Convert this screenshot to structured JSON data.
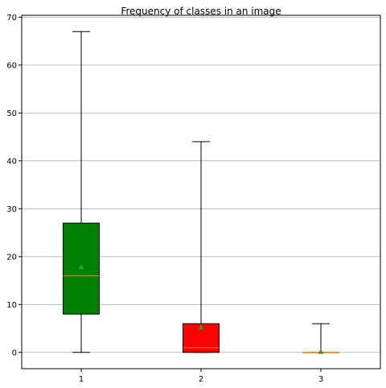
{
  "chart_data": {
    "type": "box",
    "title": "Frequency of classes in an image",
    "xlabel": "",
    "ylabel": "",
    "categories": [
      "1",
      "2",
      "3"
    ],
    "ylim": [
      -3.4,
      70.4
    ],
    "yticks": [
      0,
      10,
      20,
      30,
      40,
      50,
      60,
      70
    ],
    "grid": "horizontal",
    "boxes": [
      {
        "label": "1",
        "whislo": 0,
        "q1": 8,
        "median": 16,
        "q3": 27,
        "whishi": 67,
        "mean": 17.8,
        "color": "#008000"
      },
      {
        "label": "2",
        "whislo": 0,
        "q1": 0,
        "median": 1,
        "q3": 6,
        "whishi": 44,
        "mean": 5.2,
        "color": "#ff0000"
      },
      {
        "label": "3",
        "whislo": 0,
        "q1": 0,
        "median": 0,
        "q3": 0,
        "whishi": 6,
        "mean": 0.1,
        "color": "#ff8000"
      }
    ],
    "median_color": "#ff7f0e",
    "mean_marker_color": "#2ca02c"
  }
}
